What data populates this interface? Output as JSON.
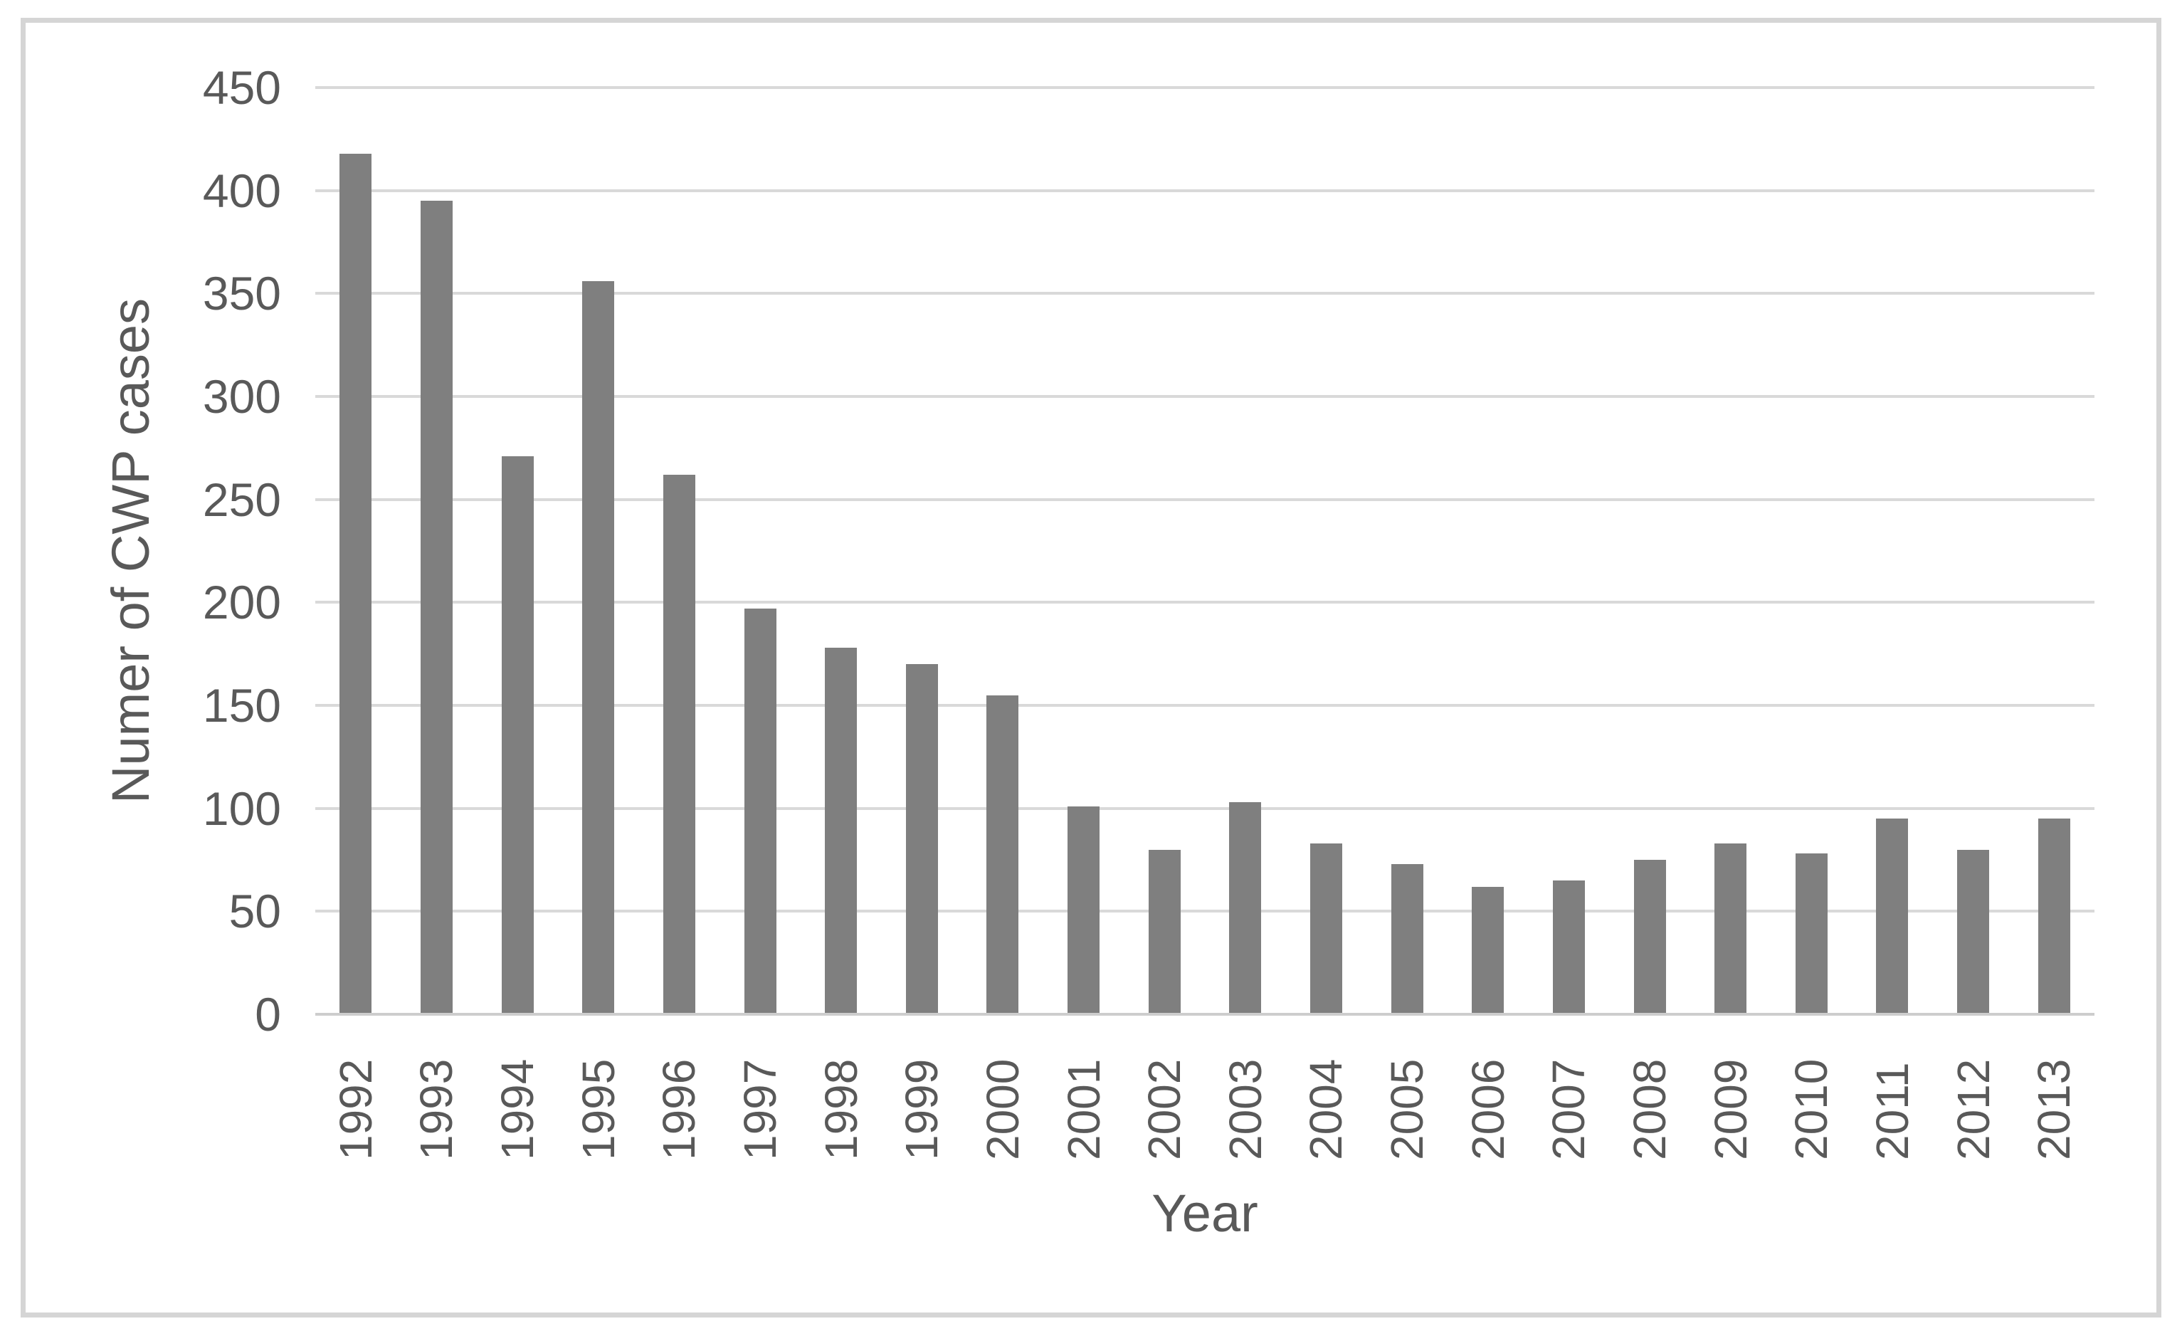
{
  "figure": {
    "y_axis_title": "Numer of CWP cases",
    "x_axis_title": "Year"
  },
  "chart_data": {
    "type": "bar",
    "title": "",
    "xlabel": "Year",
    "ylabel": "Numer of CWP cases",
    "categories": [
      "1992",
      "1993",
      "1994",
      "1995",
      "1996",
      "1997",
      "1998",
      "1999",
      "2000",
      "2001",
      "2002",
      "2003",
      "2004",
      "2005",
      "2006",
      "2007",
      "2008",
      "2009",
      "2010",
      "2011",
      "2012",
      "2013"
    ],
    "values": [
      418,
      395,
      271,
      356,
      262,
      197,
      178,
      170,
      155,
      101,
      80,
      103,
      83,
      73,
      62,
      65,
      75,
      83,
      78,
      95,
      80,
      95
    ],
    "ylim": [
      0,
      450
    ],
    "ytick_step": 50,
    "y_tick_labels": [
      "450",
      "400",
      "350",
      "300",
      "250",
      "200",
      "150",
      "100",
      "50",
      "0"
    ],
    "grid": "horizontal-only",
    "legend_position": "none",
    "bar_color": "#7f7f7f",
    "gridline_color": "#d9d9d9",
    "axis_line_color": "#cdcdcd",
    "frame_border_color": "#d5d5d5",
    "text_color": "#595959"
  }
}
